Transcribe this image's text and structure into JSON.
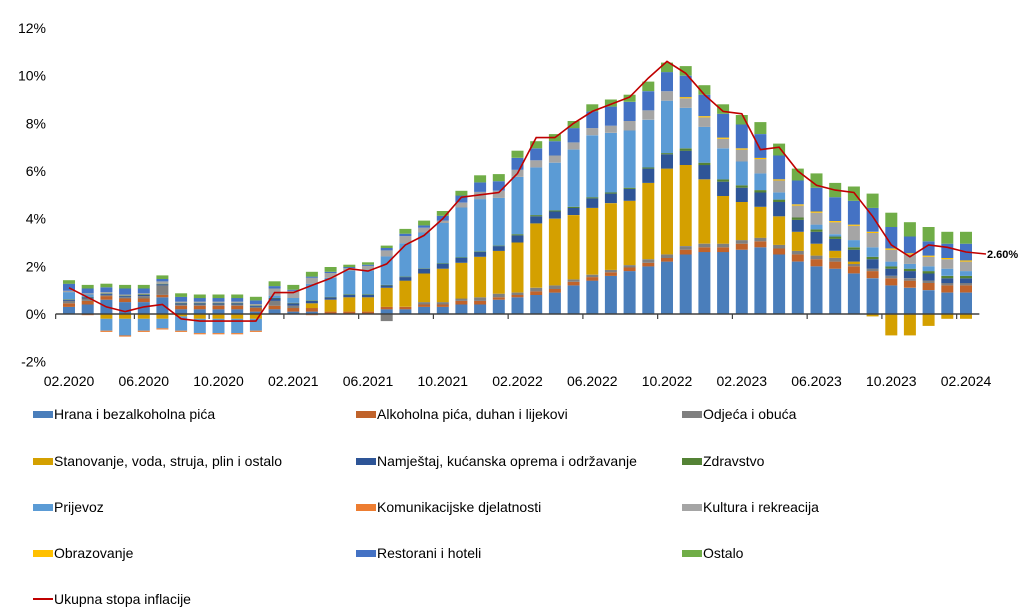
{
  "chart_data": {
    "type": "bar",
    "subtype": "stacked-bar-with-line",
    "title": "",
    "xlabel": "",
    "ylabel": "",
    "ylim": [
      -2,
      12
    ],
    "yticks": [
      "-2%",
      "0%",
      "2%",
      "4%",
      "6%",
      "8%",
      "10%",
      "12%"
    ],
    "ytick_values": [
      -2,
      0,
      2,
      4,
      6,
      8,
      10,
      12
    ],
    "grid": false,
    "legend_position": "bottom",
    "x_tick_labels": [
      "02.2020",
      "06.2020",
      "10.2020",
      "02.2021",
      "06.2021",
      "10.2021",
      "02.2022",
      "06.2022",
      "10.2022",
      "02.2023",
      "06.2023",
      "10.2023",
      "02.2024"
    ],
    "categories": [
      "02.2020",
      "03.2020",
      "04.2020",
      "05.2020",
      "06.2020",
      "07.2020",
      "08.2020",
      "09.2020",
      "10.2020",
      "11.2020",
      "12.2020",
      "01.2021",
      "02.2021",
      "03.2021",
      "04.2021",
      "05.2021",
      "06.2021",
      "07.2021",
      "08.2021",
      "09.2021",
      "10.2021",
      "11.2021",
      "12.2021",
      "01.2022",
      "02.2022",
      "03.2022",
      "04.2022",
      "05.2022",
      "06.2022",
      "07.2022",
      "08.2022",
      "09.2022",
      "10.2022",
      "11.2022",
      "12.2022",
      "01.2023",
      "02.2023",
      "03.2023",
      "04.2023",
      "05.2023",
      "06.2023",
      "07.2023",
      "08.2023",
      "09.2023",
      "10.2023",
      "11.2023",
      "12.2023",
      "01.2024",
      "02.2024"
    ],
    "series": [
      {
        "name": "Hrana i bezalkoholna pića",
        "color": "#4A7EBB",
        "values": [
          0.3,
          0.4,
          0.6,
          0.5,
          0.5,
          0.7,
          0.2,
          0.2,
          0.2,
          0.2,
          0.1,
          0.2,
          0.1,
          0.1,
          0.0,
          0.0,
          0.0,
          0.2,
          0.2,
          0.3,
          0.3,
          0.4,
          0.4,
          0.6,
          0.7,
          0.8,
          0.9,
          1.2,
          1.4,
          1.6,
          1.8,
          2.0,
          2.2,
          2.5,
          2.6,
          2.6,
          2.7,
          2.8,
          2.5,
          2.2,
          2.0,
          1.9,
          1.7,
          1.5,
          1.2,
          1.1,
          1.0,
          0.9,
          0.9
        ]
      },
      {
        "name": "Alkoholna pića, duhan i lijekovi",
        "color": "#C0632B",
        "values": [
          0.15,
          0.15,
          0.15,
          0.15,
          0.15,
          0.1,
          0.15,
          0.15,
          0.15,
          0.15,
          0.15,
          0.15,
          0.15,
          0.15,
          0.1,
          0.1,
          0.1,
          0.1,
          0.1,
          0.1,
          0.1,
          0.15,
          0.15,
          0.1,
          0.1,
          0.15,
          0.15,
          0.15,
          0.15,
          0.15,
          0.15,
          0.15,
          0.15,
          0.2,
          0.2,
          0.2,
          0.25,
          0.25,
          0.25,
          0.3,
          0.3,
          0.3,
          0.3,
          0.3,
          0.3,
          0.3,
          0.3,
          0.3,
          0.3
        ]
      },
      {
        "name": "Odjeća i obuća",
        "color": "#7F7F7F",
        "values": [
          0.1,
          0.1,
          0.05,
          0.05,
          0.1,
          0.4,
          0.05,
          0.05,
          0.05,
          0.05,
          0.05,
          0.2,
          0.1,
          0.0,
          0.0,
          0.0,
          0.0,
          -0.3,
          0.0,
          0.1,
          0.1,
          0.1,
          0.15,
          0.15,
          0.1,
          0.15,
          0.15,
          0.1,
          0.1,
          0.1,
          0.1,
          0.15,
          0.15,
          0.15,
          0.15,
          0.15,
          0.15,
          0.15,
          0.15,
          0.15,
          0.15,
          0.15,
          0.1,
          0.1,
          0.1,
          0.1,
          0.1,
          0.1,
          0.1
        ]
      },
      {
        "name": "Stanovanje, voda, struja, plin i ostalo",
        "color": "#D4A000",
        "values": [
          0.0,
          0.0,
          -0.2,
          -0.2,
          -0.2,
          -0.2,
          -0.1,
          -0.2,
          -0.2,
          -0.2,
          -0.2,
          0.0,
          0.0,
          0.2,
          0.5,
          0.6,
          0.6,
          0.8,
          1.1,
          1.2,
          1.4,
          1.5,
          1.7,
          1.8,
          2.1,
          2.7,
          2.8,
          2.7,
          2.8,
          2.8,
          2.7,
          3.2,
          3.6,
          3.4,
          2.7,
          2.0,
          1.6,
          1.3,
          1.2,
          0.8,
          0.5,
          0.3,
          0.1,
          -0.1,
          -0.9,
          -0.9,
          -0.5,
          -0.2,
          -0.2
        ]
      },
      {
        "name": "Namještaj, kućanska oprema i održavanje",
        "color": "#2E5597",
        "values": [
          0.05,
          0.05,
          0.05,
          0.05,
          0.05,
          0.05,
          0.05,
          0.05,
          0.05,
          0.05,
          0.05,
          0.1,
          0.1,
          0.1,
          0.1,
          0.1,
          0.1,
          0.1,
          0.15,
          0.2,
          0.2,
          0.2,
          0.2,
          0.2,
          0.3,
          0.3,
          0.3,
          0.3,
          0.4,
          0.4,
          0.5,
          0.6,
          0.6,
          0.6,
          0.6,
          0.6,
          0.6,
          0.6,
          0.6,
          0.5,
          0.5,
          0.5,
          0.5,
          0.4,
          0.3,
          0.3,
          0.3,
          0.2,
          0.2
        ]
      },
      {
        "name": "Zdravstvo",
        "color": "#548235",
        "values": [
          0.02,
          0.02,
          0.02,
          0.02,
          0.02,
          0.02,
          0.02,
          0.02,
          0.02,
          0.02,
          0.02,
          0.02,
          0.02,
          0.02,
          0.02,
          0.02,
          0.02,
          0.02,
          0.02,
          0.02,
          0.02,
          0.02,
          0.02,
          0.02,
          0.05,
          0.05,
          0.05,
          0.05,
          0.05,
          0.05,
          0.05,
          0.05,
          0.05,
          0.1,
          0.1,
          0.1,
          0.1,
          0.1,
          0.1,
          0.1,
          0.1,
          0.1,
          0.1,
          0.1,
          0.1,
          0.1,
          0.1,
          0.1,
          0.1
        ]
      },
      {
        "name": "Prijevoz",
        "color": "#5B9BD5",
        "values": [
          0.3,
          0.1,
          -0.5,
          -0.7,
          -0.5,
          -0.4,
          -0.6,
          -0.6,
          -0.6,
          -0.6,
          -0.5,
          0.1,
          0.2,
          0.7,
          0.8,
          1.0,
          1.0,
          1.2,
          1.4,
          1.5,
          1.7,
          2.1,
          2.2,
          2.0,
          2.4,
          2.0,
          2.0,
          2.4,
          2.6,
          2.5,
          2.4,
          2.0,
          2.2,
          1.7,
          1.5,
          1.3,
          1.0,
          0.7,
          0.3,
          0.0,
          0.2,
          0.1,
          0.3,
          0.4,
          0.2,
          0.2,
          0.2,
          0.3,
          0.2
        ]
      },
      {
        "name": "Komunikacijske djelatnosti",
        "color": "#ED7D31",
        "values": [
          0.0,
          -0.05,
          -0.05,
          -0.05,
          -0.05,
          -0.05,
          -0.05,
          -0.05,
          -0.05,
          -0.05,
          -0.05,
          0.0,
          0.0,
          -0.05,
          0.0,
          0.0,
          0.0,
          0.0,
          0.0,
          0.0,
          0.0,
          0.0,
          0.0,
          0.0,
          0.0,
          0.0,
          0.0,
          0.0,
          0.0,
          0.0,
          0.0,
          0.0,
          0.0,
          0.0,
          0.0,
          0.0,
          0.0,
          0.0,
          0.0,
          0.0,
          0.0,
          0.0,
          0.0,
          0.0,
          0.0,
          0.0,
          0.0,
          0.0,
          0.0
        ]
      },
      {
        "name": "Kultura i rekreacija",
        "color": "#A5A5A5",
        "values": [
          0.05,
          0.05,
          0.05,
          0.05,
          0.05,
          0.1,
          0.05,
          0.05,
          0.05,
          0.05,
          0.05,
          0.3,
          0.3,
          0.25,
          0.2,
          0.1,
          0.2,
          0.25,
          0.3,
          0.2,
          0.1,
          0.2,
          0.3,
          0.3,
          0.3,
          0.3,
          0.3,
          0.3,
          0.3,
          0.3,
          0.4,
          0.4,
          0.4,
          0.4,
          0.4,
          0.4,
          0.5,
          0.6,
          0.5,
          0.5,
          0.5,
          0.5,
          0.6,
          0.6,
          0.5,
          0.4,
          0.4,
          0.4,
          0.4
        ]
      },
      {
        "name": "Obrazovanje",
        "color": "#FFC000",
        "values": [
          0.0,
          0.0,
          0.0,
          0.0,
          0.0,
          0.0,
          0.0,
          0.0,
          0.0,
          0.0,
          0.0,
          0.0,
          0.0,
          0.0,
          0.0,
          0.0,
          0.0,
          0.0,
          0.0,
          0.0,
          0.0,
          0.0,
          0.0,
          0.0,
          0.0,
          0.0,
          0.0,
          0.0,
          0.0,
          0.0,
          0.0,
          0.0,
          0.0,
          0.05,
          0.05,
          0.05,
          0.05,
          0.05,
          0.05,
          0.05,
          0.05,
          0.05,
          0.05,
          0.05,
          0.05,
          0.05,
          0.05,
          0.05,
          0.05
        ]
      },
      {
        "name": "Restorani i hoteli",
        "color": "#4472C4",
        "values": [
          0.3,
          0.2,
          0.2,
          0.25,
          0.2,
          0.1,
          0.2,
          0.15,
          0.15,
          0.15,
          0.15,
          0.1,
          0.05,
          0.05,
          0.05,
          0.05,
          0.05,
          0.1,
          0.1,
          0.1,
          0.2,
          0.3,
          0.4,
          0.4,
          0.5,
          0.5,
          0.6,
          0.6,
          0.7,
          0.8,
          0.8,
          0.8,
          0.8,
          0.9,
          0.9,
          1.0,
          1.0,
          1.0,
          1.0,
          1.0,
          1.0,
          1.0,
          1.0,
          1.0,
          0.9,
          0.7,
          0.6,
          0.6,
          0.7
        ]
      },
      {
        "name": "Ostalo",
        "color": "#70AD47",
        "values": [
          0.15,
          0.15,
          0.15,
          0.15,
          0.15,
          0.15,
          0.15,
          0.15,
          0.15,
          0.15,
          0.15,
          0.2,
          0.2,
          0.2,
          0.2,
          0.1,
          0.1,
          0.1,
          0.2,
          0.2,
          0.2,
          0.2,
          0.3,
          0.3,
          0.3,
          0.3,
          0.3,
          0.3,
          0.3,
          0.3,
          0.3,
          0.4,
          0.4,
          0.4,
          0.4,
          0.4,
          0.4,
          0.5,
          0.5,
          0.5,
          0.6,
          0.6,
          0.6,
          0.6,
          0.6,
          0.6,
          0.6,
          0.5,
          0.5
        ]
      }
    ],
    "line": {
      "name": "Ukupna stopa inflacije",
      "color": "#C00000",
      "values": [
        1.1,
        0.7,
        0.3,
        0.1,
        0.3,
        0.4,
        -0.2,
        -0.3,
        -0.3,
        -0.3,
        -0.3,
        0.9,
        0.9,
        1.2,
        1.5,
        1.9,
        1.8,
        2.1,
        2.9,
        3.3,
        4.0,
        4.9,
        5.0,
        5.1,
        5.9,
        7.4,
        7.4,
        8.0,
        8.5,
        8.8,
        9.1,
        9.9,
        10.6,
        10.1,
        9.2,
        8.5,
        8.4,
        6.9,
        7.0,
        6.0,
        5.4,
        5.2,
        5.1,
        4.1,
        2.9,
        2.4,
        2.9,
        2.8,
        2.6
      ],
      "end_label": "2.60%"
    }
  }
}
